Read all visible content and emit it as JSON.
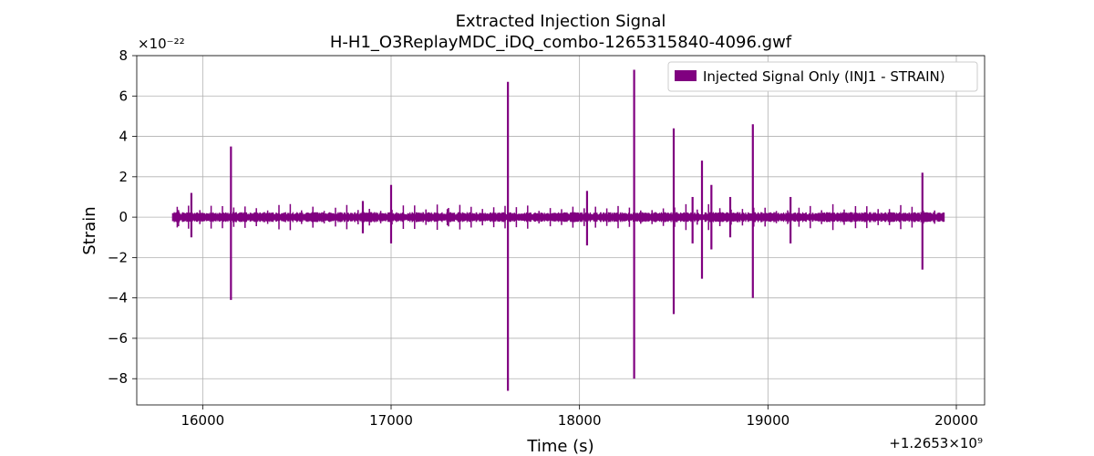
{
  "chart_data": {
    "type": "line",
    "title": "Extracted Injection Signal",
    "subtitle": "H-H1_O3ReplayMDC_iDQ_combo-1265315840-4096.gwf",
    "xlabel": "Time (s)",
    "ylabel": "Strain",
    "y_scale_label": "×10⁻²²",
    "x_offset_label": "+1.2653×10⁹",
    "xlim": [
      15650,
      20150
    ],
    "ylim": [
      -9.3,
      8.0
    ],
    "x_ticks": [
      16000,
      17000,
      18000,
      19000,
      20000
    ],
    "x_tick_labels": [
      "16000",
      "17000",
      "18000",
      "19000",
      "20000"
    ],
    "y_ticks": [
      -8,
      -6,
      -4,
      -2,
      0,
      2,
      4,
      6,
      8
    ],
    "y_tick_labels": [
      "−8",
      "−6",
      "−4",
      "−2",
      "0",
      "2",
      "4",
      "6",
      "8"
    ],
    "grid": true,
    "legend_position": "top-right",
    "series": [
      {
        "name": "Injected Signal Only (INJ1 - STRAIN)",
        "color": "#800080",
        "x_range": [
          15840,
          19936
        ],
        "baseline_amplitude": 0.25,
        "spikes": [
          {
            "x": 15870,
            "max": 0.35,
            "min": -0.45
          },
          {
            "x": 15940,
            "max": 1.2,
            "min": -1.0
          },
          {
            "x": 16150,
            "max": 3.5,
            "min": -4.1
          },
          {
            "x": 16850,
            "max": 0.8,
            "min": -0.8
          },
          {
            "x": 17000,
            "max": 1.6,
            "min": -1.3
          },
          {
            "x": 17300,
            "max": 0.4,
            "min": -0.4
          },
          {
            "x": 17620,
            "max": 6.7,
            "min": -8.6
          },
          {
            "x": 18040,
            "max": 1.3,
            "min": -1.4
          },
          {
            "x": 18290,
            "max": 7.3,
            "min": -8.0
          },
          {
            "x": 18500,
            "max": 4.4,
            "min": -4.8
          },
          {
            "x": 18600,
            "max": 1.0,
            "min": -1.3
          },
          {
            "x": 18650,
            "max": 2.8,
            "min": -3.05
          },
          {
            "x": 18700,
            "max": 1.6,
            "min": -1.6
          },
          {
            "x": 18800,
            "max": 1.0,
            "min": -1.0
          },
          {
            "x": 18920,
            "max": 4.6,
            "min": -4.0
          },
          {
            "x": 19120,
            "max": 1.0,
            "min": -1.3
          },
          {
            "x": 19820,
            "max": 2.2,
            "min": -2.6
          }
        ]
      }
    ]
  }
}
